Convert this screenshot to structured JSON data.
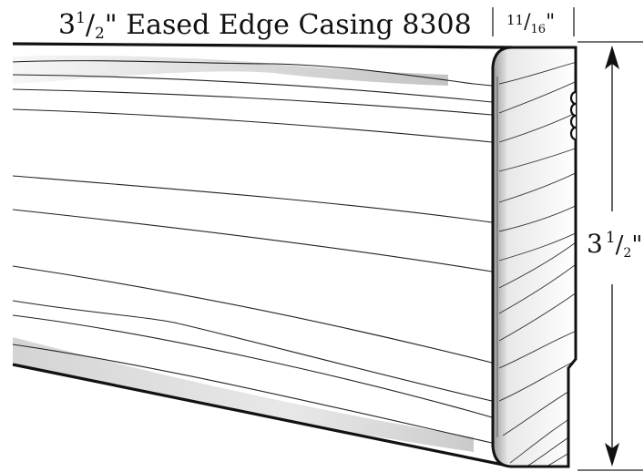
{
  "title": {
    "width_whole": "3",
    "width_num": "1",
    "width_den": "2",
    "name": "\" Eased Edge Casing 8308"
  },
  "thickness": {
    "num": "11",
    "den": "16",
    "unit": "\""
  },
  "height": {
    "whole": "3",
    "num": "1",
    "den": "2",
    "unit": "\""
  }
}
